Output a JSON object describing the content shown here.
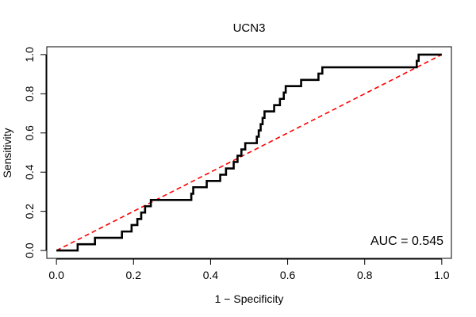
{
  "chart_data": {
    "type": "line",
    "title": "UCN3",
    "xlabel": "1 − Specificity",
    "ylabel": "Sensitivity",
    "xlim": [
      -0.025,
      1.025
    ],
    "ylim": [
      -0.04,
      1.04
    ],
    "xticks": [
      "0.0",
      "0.2",
      "0.4",
      "0.6",
      "0.8",
      "1.0"
    ],
    "yticks": [
      "0.0",
      "0.2",
      "0.4",
      "0.6",
      "0.8",
      "1.0"
    ],
    "grid": false,
    "annotation": "AUC = 0.545",
    "series": [
      {
        "color": "#000000",
        "points": [
          [
            0.0,
            0.0
          ],
          [
            0.055,
            0.0
          ],
          [
            0.055,
            0.032
          ],
          [
            0.1,
            0.032
          ],
          [
            0.1,
            0.065
          ],
          [
            0.17,
            0.065
          ],
          [
            0.17,
            0.097
          ],
          [
            0.195,
            0.097
          ],
          [
            0.195,
            0.13
          ],
          [
            0.21,
            0.13
          ],
          [
            0.21,
            0.161
          ],
          [
            0.22,
            0.161
          ],
          [
            0.22,
            0.194
          ],
          [
            0.23,
            0.194
          ],
          [
            0.23,
            0.226
          ],
          [
            0.245,
            0.226
          ],
          [
            0.245,
            0.258
          ],
          [
            0.35,
            0.258
          ],
          [
            0.35,
            0.29
          ],
          [
            0.355,
            0.29
          ],
          [
            0.355,
            0.323
          ],
          [
            0.39,
            0.323
          ],
          [
            0.39,
            0.355
          ],
          [
            0.425,
            0.355
          ],
          [
            0.425,
            0.387
          ],
          [
            0.44,
            0.387
          ],
          [
            0.44,
            0.419
          ],
          [
            0.46,
            0.419
          ],
          [
            0.46,
            0.452
          ],
          [
            0.47,
            0.452
          ],
          [
            0.47,
            0.484
          ],
          [
            0.48,
            0.484
          ],
          [
            0.48,
            0.516
          ],
          [
            0.49,
            0.516
          ],
          [
            0.49,
            0.548
          ],
          [
            0.52,
            0.548
          ],
          [
            0.52,
            0.581
          ],
          [
            0.525,
            0.581
          ],
          [
            0.525,
            0.613
          ],
          [
            0.53,
            0.613
          ],
          [
            0.53,
            0.645
          ],
          [
            0.535,
            0.645
          ],
          [
            0.535,
            0.677
          ],
          [
            0.54,
            0.677
          ],
          [
            0.54,
            0.71
          ],
          [
            0.565,
            0.71
          ],
          [
            0.565,
            0.742
          ],
          [
            0.58,
            0.742
          ],
          [
            0.58,
            0.774
          ],
          [
            0.59,
            0.774
          ],
          [
            0.59,
            0.806
          ],
          [
            0.595,
            0.806
          ],
          [
            0.595,
            0.839
          ],
          [
            0.635,
            0.839
          ],
          [
            0.635,
            0.871
          ],
          [
            0.68,
            0.871
          ],
          [
            0.68,
            0.903
          ],
          [
            0.69,
            0.903
          ],
          [
            0.69,
            0.935
          ],
          [
            0.935,
            0.935
          ],
          [
            0.935,
            0.968
          ],
          [
            0.94,
            0.968
          ],
          [
            0.94,
            1.0
          ],
          [
            1.0,
            1.0
          ]
        ]
      },
      {
        "color": "#ff0000",
        "style": "dashed",
        "points": [
          [
            0.0,
            0.0
          ],
          [
            1.0,
            1.0
          ]
        ]
      }
    ]
  }
}
